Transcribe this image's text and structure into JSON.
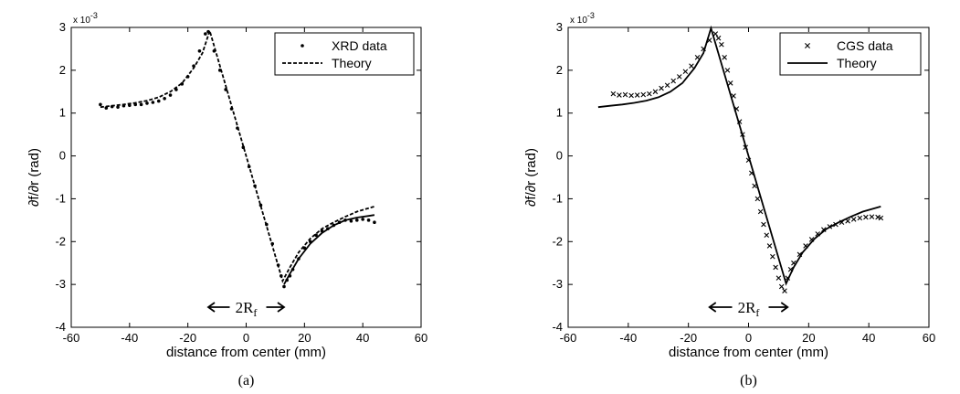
{
  "chart_data": [
    {
      "type": "line",
      "caption": "(a)",
      "xlabel": "distance from center (mm)",
      "ylabel": "∂f/∂r (rad)",
      "y_multiplier": "x 10",
      "y_multiplier_exp": "-3",
      "xlim": [
        -60,
        60
      ],
      "ylim": [
        -4,
        3
      ],
      "xticks": [
        -60,
        -40,
        -20,
        0,
        20,
        40,
        60
      ],
      "yticks": [
        -4,
        -3,
        -2,
        -1,
        0,
        1,
        2,
        3
      ],
      "grid": false,
      "legend_position": "top-right",
      "annotation": {
        "text": "2R",
        "subscript": "f",
        "from": -13,
        "to": 13
      },
      "series": [
        {
          "name": "XRD data",
          "marker": "dot",
          "x": [
            -50,
            -48,
            -46,
            -44,
            -42,
            -40,
            -38,
            -36,
            -34,
            -32,
            -30,
            -28,
            -26,
            -24,
            -22,
            -20,
            -18,
            -16,
            -14,
            -13,
            -11,
            -9,
            -7,
            -5,
            -3,
            -1,
            1,
            3,
            5,
            7,
            9,
            11,
            12,
            13,
            14,
            15,
            16,
            18,
            20,
            22,
            24,
            26,
            28,
            30,
            32,
            34,
            36,
            38,
            40,
            42,
            44
          ],
          "y": [
            1.2,
            1.12,
            1.15,
            1.14,
            1.17,
            1.18,
            1.2,
            1.2,
            1.23,
            1.25,
            1.28,
            1.34,
            1.42,
            1.55,
            1.68,
            1.85,
            2.1,
            2.45,
            2.85,
            2.9,
            2.45,
            2.0,
            1.55,
            1.1,
            0.65,
            0.2,
            -0.25,
            -0.7,
            -1.15,
            -1.6,
            -2.05,
            -2.55,
            -2.8,
            -3.05,
            -2.9,
            -2.8,
            -2.65,
            -2.4,
            -2.15,
            -2.0,
            -1.85,
            -1.75,
            -1.7,
            -1.62,
            -1.55,
            -1.5,
            -1.52,
            -1.5,
            -1.48,
            -1.5,
            -1.55
          ]
        },
        {
          "name": "Theory",
          "style": "dashed",
          "x": [
            -50,
            -46,
            -42,
            -38,
            -34,
            -30,
            -26,
            -22,
            -18,
            -15,
            -12.5,
            0,
            12.5,
            15,
            18,
            22,
            26,
            30,
            34,
            38,
            42,
            44
          ],
          "y": [
            1.14,
            1.17,
            1.2,
            1.24,
            1.29,
            1.37,
            1.5,
            1.7,
            2.05,
            2.4,
            2.92,
            0,
            -2.92,
            -2.6,
            -2.25,
            -1.93,
            -1.7,
            -1.55,
            -1.42,
            -1.3,
            -1.22,
            -1.18
          ]
        },
        {
          "name": "",
          "style": "solid",
          "x": [
            13,
            15,
            18,
            22,
            26,
            30,
            34,
            38,
            42,
            44
          ],
          "y": [
            -3.0,
            -2.75,
            -2.4,
            -2.05,
            -1.8,
            -1.62,
            -1.5,
            -1.44,
            -1.4,
            -1.38
          ]
        }
      ]
    },
    {
      "type": "line",
      "caption": "(b)",
      "xlabel": "distance from center (mm)",
      "ylabel": "∂f/∂r (rad)",
      "y_multiplier": "x 10",
      "y_multiplier_exp": "-3",
      "xlim": [
        -60,
        60
      ],
      "ylim": [
        -4,
        3
      ],
      "xticks": [
        -60,
        -40,
        -20,
        0,
        20,
        40,
        60
      ],
      "yticks": [
        -4,
        -3,
        -2,
        -1,
        0,
        1,
        2,
        3
      ],
      "grid": false,
      "legend_position": "top-right",
      "annotation": {
        "text": "2R",
        "subscript": "f",
        "from": -13,
        "to": 13
      },
      "series": [
        {
          "name": "CGS data",
          "marker": "x",
          "x": [
            -45,
            -43,
            -41,
            -39,
            -37,
            -35,
            -33,
            -31,
            -29,
            -27,
            -25,
            -23,
            -21,
            -19,
            -17,
            -15,
            -13,
            -11,
            -10,
            -9,
            -8,
            -7,
            -6,
            -5,
            -4,
            -3,
            -2,
            -1,
            0,
            1,
            2,
            3,
            4,
            5,
            6,
            7,
            8,
            9,
            10,
            11,
            12,
            13,
            14,
            15,
            17,
            19,
            21,
            23,
            25,
            27,
            29,
            31,
            33,
            35,
            37,
            39,
            41,
            43,
            44
          ],
          "y": [
            1.45,
            1.42,
            1.43,
            1.41,
            1.42,
            1.43,
            1.45,
            1.5,
            1.58,
            1.65,
            1.75,
            1.85,
            1.97,
            2.1,
            2.3,
            2.5,
            2.7,
            2.85,
            2.75,
            2.6,
            2.3,
            2.0,
            1.7,
            1.4,
            1.1,
            0.8,
            0.5,
            0.2,
            -0.1,
            -0.4,
            -0.7,
            -1.0,
            -1.3,
            -1.6,
            -1.85,
            -2.1,
            -2.35,
            -2.6,
            -2.85,
            -3.05,
            -3.15,
            -2.85,
            -2.65,
            -2.5,
            -2.3,
            -2.1,
            -1.95,
            -1.82,
            -1.72,
            -1.65,
            -1.6,
            -1.55,
            -1.52,
            -1.48,
            -1.45,
            -1.43,
            -1.42,
            -1.43,
            -1.45
          ]
        },
        {
          "name": "Theory",
          "style": "solid",
          "x": [
            -50,
            -46,
            -42,
            -38,
            -34,
            -30,
            -26,
            -22,
            -18,
            -15,
            -12.5,
            0,
            12.5,
            15,
            18,
            22,
            26,
            30,
            34,
            38,
            42,
            44
          ],
          "y": [
            1.14,
            1.17,
            1.2,
            1.24,
            1.29,
            1.37,
            1.5,
            1.7,
            2.05,
            2.4,
            2.98,
            0,
            -2.98,
            -2.6,
            -2.25,
            -1.93,
            -1.7,
            -1.55,
            -1.42,
            -1.3,
            -1.22,
            -1.18
          ]
        }
      ]
    }
  ]
}
